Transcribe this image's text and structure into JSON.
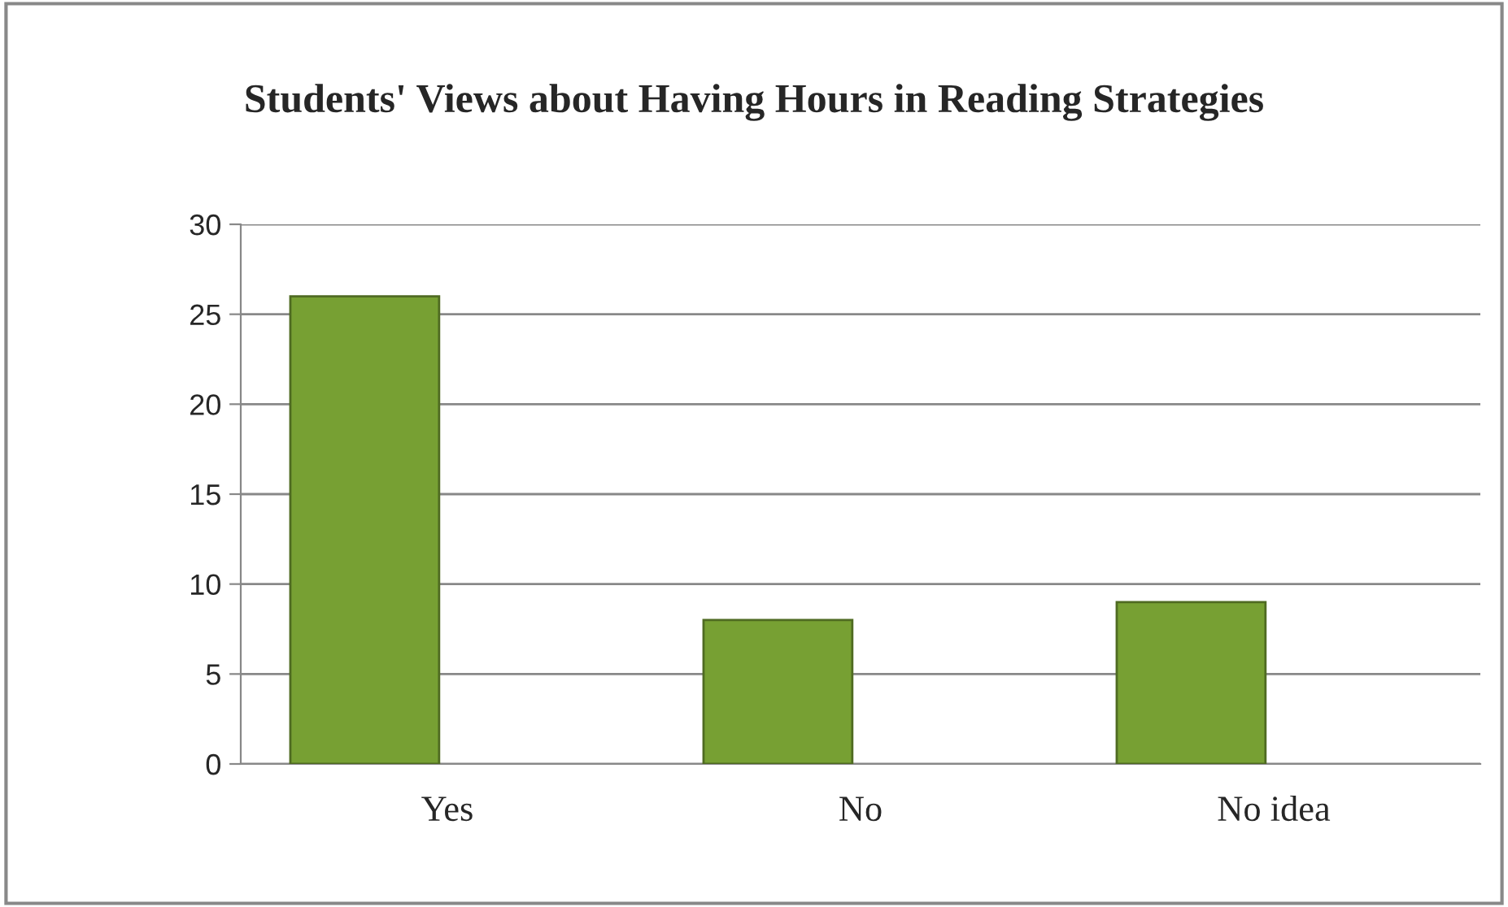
{
  "chart_data": {
    "type": "bar",
    "title": "Students' Views about Having Hours in Reading Strategies",
    "categories": [
      "Yes",
      "No",
      "No idea"
    ],
    "values": [
      26,
      8,
      9
    ],
    "color": "#77a033",
    "ylim": [
      0,
      30
    ],
    "yticks": [
      0,
      5,
      10,
      15,
      20,
      25,
      30
    ],
    "grid": "y",
    "legend": false
  }
}
